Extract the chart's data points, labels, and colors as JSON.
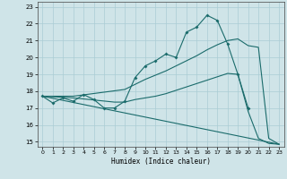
{
  "xlabel": "Humidex (Indice chaleur)",
  "bg_color": "#cfe4e8",
  "grid_color": "#aacdd4",
  "line_color": "#1a6b6b",
  "xlim": [
    -0.5,
    23.5
  ],
  "ylim": [
    14.7,
    23.3
  ],
  "xticks": [
    0,
    1,
    2,
    3,
    4,
    5,
    6,
    7,
    8,
    9,
    10,
    11,
    12,
    13,
    14,
    15,
    16,
    17,
    18,
    19,
    20,
    21,
    22,
    23
  ],
  "yticks": [
    15,
    16,
    17,
    18,
    19,
    20,
    21,
    22,
    23
  ],
  "line1_x": [
    0,
    1,
    2,
    3,
    4,
    5,
    6,
    7,
    8,
    9,
    10,
    11,
    12,
    13,
    14,
    15,
    16,
    17,
    18,
    19,
    20
  ],
  "line1_y": [
    17.7,
    17.3,
    17.6,
    17.4,
    17.8,
    17.5,
    17.0,
    17.0,
    17.4,
    18.8,
    19.5,
    19.8,
    20.2,
    20.0,
    21.5,
    21.8,
    22.5,
    22.2,
    20.8,
    19.0,
    17.0
  ],
  "line2_x": [
    0,
    3,
    8,
    9,
    10,
    11,
    12,
    13,
    14,
    15,
    16,
    17,
    18,
    19,
    20,
    21,
    22,
    23
  ],
  "line2_y": [
    17.7,
    17.7,
    18.1,
    18.4,
    18.7,
    18.95,
    19.2,
    19.5,
    19.8,
    20.1,
    20.45,
    20.75,
    21.0,
    21.1,
    20.7,
    20.6,
    15.2,
    14.85
  ],
  "line3_x": [
    0,
    3,
    7,
    8,
    9,
    10,
    11,
    12,
    13,
    14,
    15,
    16,
    17,
    18,
    19,
    20,
    21,
    22,
    23
  ],
  "line3_y": [
    17.7,
    17.6,
    17.35,
    17.35,
    17.5,
    17.6,
    17.7,
    17.85,
    18.05,
    18.25,
    18.45,
    18.65,
    18.85,
    19.05,
    19.0,
    16.8,
    15.2,
    14.9,
    14.85
  ],
  "line4_x": [
    0,
    23
  ],
  "line4_y": [
    17.7,
    14.85
  ]
}
